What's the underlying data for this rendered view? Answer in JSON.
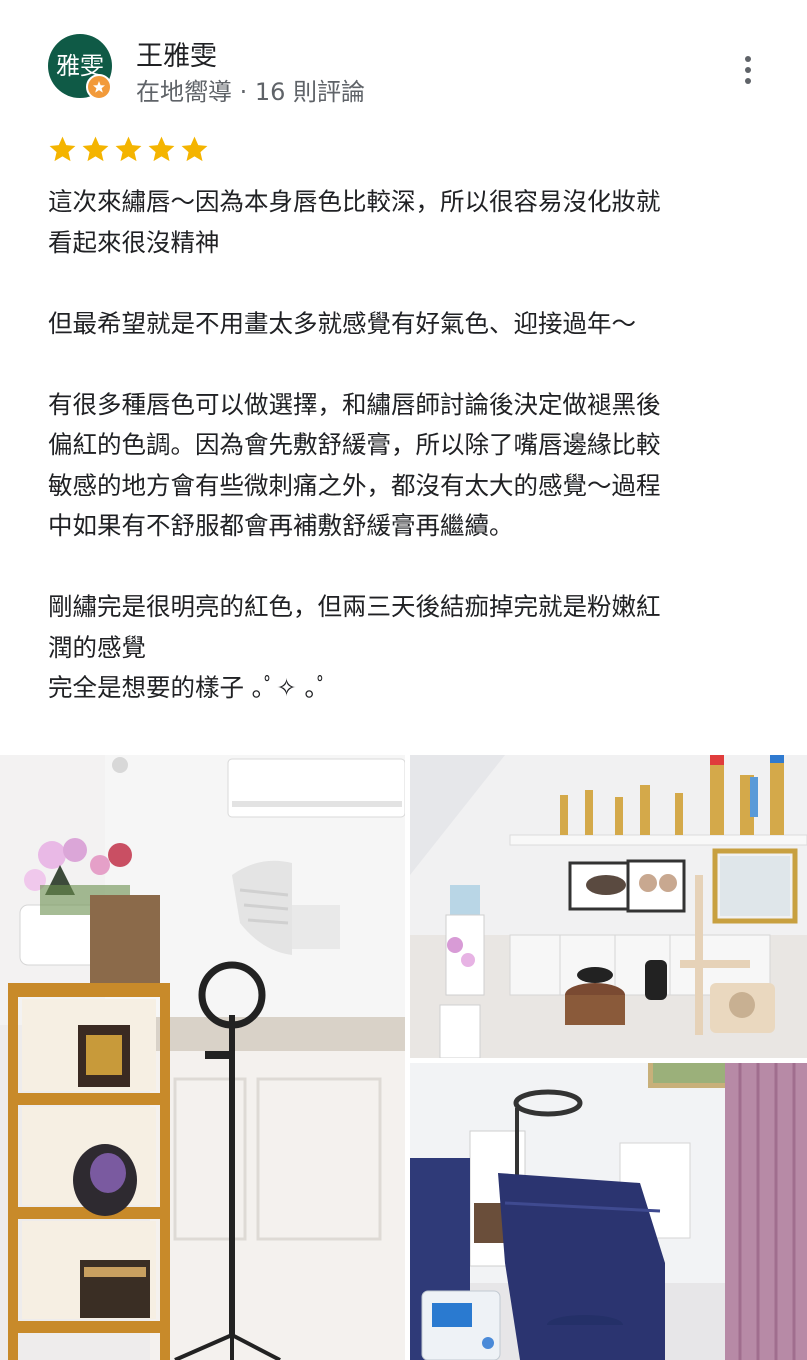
{
  "reviewer": {
    "avatar_text": "雅雯",
    "name": "王雅雯",
    "meta": "在地嚮導 · 16 則評論",
    "avatar_color": "#0f5a46",
    "badge_color": "#f29a3a"
  },
  "more_icon": "more-vert-icon",
  "rating": {
    "stars": 5,
    "max": 5,
    "star_color": "#f4b400"
  },
  "review": {
    "lines": [
      "這次來繡唇～因為本身唇色比較深，所以很容易沒化妝就",
      "看起來很沒精神",
      "",
      "但最希望就是不用畫太多就感覺有好氣色、迎接過年～",
      "",
      "有很多種唇色可以做選擇，和繡唇師討論後決定做褪黑後",
      "偏紅的色調。因為會先敷舒緩膏，所以除了嘴唇邊緣比較",
      "敏感的地方會有些微刺痛之外，都沒有太大的感覺～過程",
      "中如果有不舒服都會再補敷舒緩膏再繼續。",
      "",
      "剛繡完是很明亮的紅色，但兩三天後結痂掉完就是粉嫩紅",
      "潤的感覺",
      "完全是想要的樣子 ｡ﾟ✧ ｡ﾟ"
    ]
  },
  "photos": [
    {
      "name": "photo-reception"
    },
    {
      "name": "photo-studio"
    },
    {
      "name": "photo-treatment-room"
    }
  ]
}
